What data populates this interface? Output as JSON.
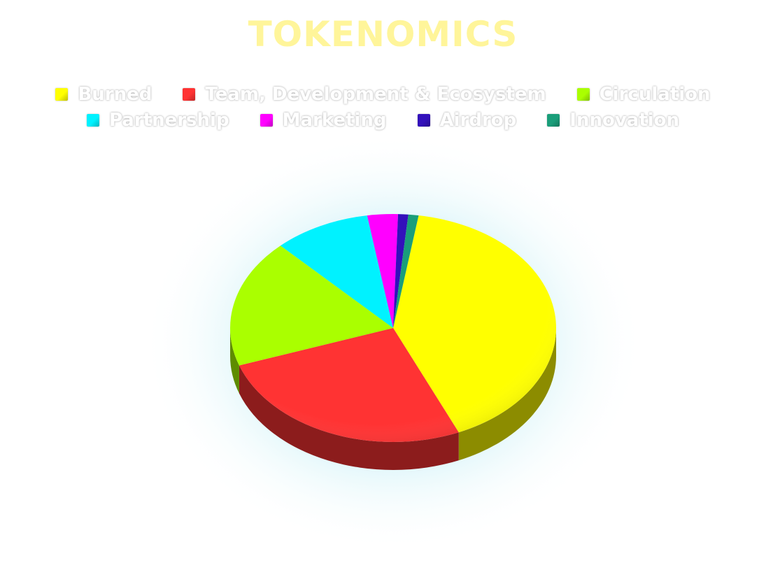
{
  "chart_data": {
    "type": "pie",
    "title": "TOKENOMICS",
    "series": [
      {
        "labels": [
          "Burned",
          "Team, Development & Ecosystem",
          "Circulation",
          "Partnership",
          "Marketing",
          "Airdrop",
          "Innovation"
        ],
        "values": [
          40.5,
          26,
          18,
          9.5,
          3,
          1,
          1
        ],
        "colors": [
          "#ffff00",
          "#ff3333",
          "#aaff00",
          "#00f2ff",
          "#ff00ff",
          "#3311bb",
          "#1a9e7a"
        ]
      }
    ],
    "legend": "top",
    "style": "3d"
  }
}
